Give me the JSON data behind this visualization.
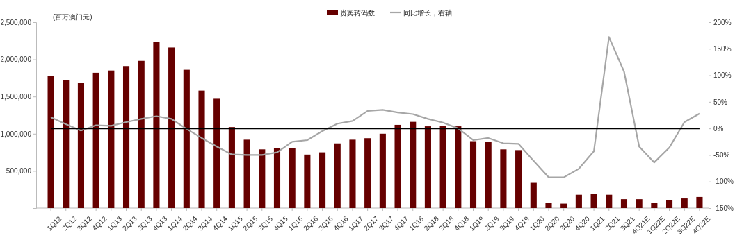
{
  "chart_data": {
    "type": "bar",
    "ylabel": "(百万澳门元)",
    "legend": "top",
    "grid": false,
    "categories": [
      "1Q12",
      "2Q12",
      "3Q12",
      "4Q12",
      "1Q13",
      "2Q13",
      "3Q13",
      "4Q13",
      "1Q14",
      "2Q14",
      "3Q14",
      "4Q14",
      "1Q15",
      "2Q15",
      "3Q15",
      "4Q15",
      "1Q16",
      "2Q16",
      "3Q16",
      "4Q16",
      "1Q17",
      "2Q17",
      "3Q17",
      "4Q17",
      "1Q18",
      "2Q18",
      "3Q18",
      "4Q18",
      "1Q19",
      "2Q19",
      "3Q19",
      "4Q19",
      "1Q20",
      "2Q20",
      "3Q20",
      "4Q20",
      "1Q21",
      "2Q21",
      "3Q21",
      "4Q21E",
      "1Q22E",
      "2Q22E",
      "3Q22E",
      "4Q22E"
    ],
    "series": [
      {
        "name": "贵宾转码数",
        "color": "#660000",
        "values": [
          1780000,
          1720000,
          1680000,
          1820000,
          1850000,
          1910000,
          1980000,
          2230000,
          2160000,
          1860000,
          1580000,
          1470000,
          1090000,
          920000,
          790000,
          810000,
          810000,
          720000,
          750000,
          870000,
          920000,
          940000,
          1000000,
          1120000,
          1160000,
          1100000,
          1110000,
          1100000,
          900000,
          890000,
          790000,
          780000,
          340000,
          70000,
          60000,
          180000,
          190000,
          180000,
          120000,
          120000,
          70000,
          110000,
          130000,
          150000
        ]
      },
      {
        "name": "同比增长，右轴",
        "type": "line",
        "axis": "y2",
        "color": "#a6a6a6",
        "marker": "none",
        "line_style": "solid",
        "values": [
          21,
          8,
          -4,
          6,
          5,
          12,
          18,
          23,
          18,
          -1,
          -18,
          -34,
          -49,
          -50,
          -50,
          -45,
          -25,
          -22,
          -5,
          9,
          14,
          33,
          35,
          30,
          27,
          18,
          11,
          0,
          -22,
          -18,
          -28,
          -29,
          -61,
          -92,
          -92,
          -76,
          -43,
          172,
          107,
          -34,
          -64,
          -36,
          12,
          28
        ]
      }
    ],
    "ylim": [
      0,
      2500000
    ],
    "yticks": [
      {
        "value": 0,
        "label": "-"
      },
      {
        "value": 500000,
        "label": "500,000"
      },
      {
        "value": 1000000,
        "label": "1,000,000"
      },
      {
        "value": 1500000,
        "label": "1,500,000"
      },
      {
        "value": 2000000,
        "label": "2,000,000"
      },
      {
        "value": 2500000,
        "label": "2,500,000"
      }
    ],
    "y2lim": [
      -150,
      200
    ],
    "y2ticks": [
      {
        "value": -150,
        "label": "-150%"
      },
      {
        "value": -100,
        "label": "-100%"
      },
      {
        "value": -50,
        "label": "-50%"
      },
      {
        "value": 0,
        "label": "0%"
      },
      {
        "value": 50,
        "label": "50%"
      },
      {
        "value": 100,
        "label": "100%"
      },
      {
        "value": 150,
        "label": "150%"
      },
      {
        "value": 200,
        "label": "200%"
      }
    ],
    "ref_lines": [
      {
        "axis": "y2",
        "value": 0,
        "color": "#000000"
      }
    ]
  }
}
